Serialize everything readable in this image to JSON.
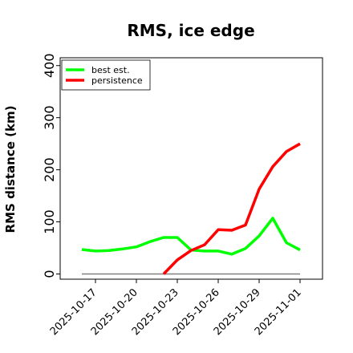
{
  "chart_data": {
    "type": "line",
    "title": "RMS, ice edge",
    "ylabel": "RMS distance (km)",
    "xlabel": "",
    "x": [
      "2025-10-16",
      "2025-10-17",
      "2025-10-18",
      "2025-10-19",
      "2025-10-20",
      "2025-10-21",
      "2025-10-22",
      "2025-10-23",
      "2025-10-24",
      "2025-10-25",
      "2025-10-26",
      "2025-10-27",
      "2025-10-28",
      "2025-10-29",
      "2025-10-30",
      "2025-10-31",
      "2025-11-01"
    ],
    "xticks": [
      "2025-10-17",
      "2025-10-20",
      "2025-10-23",
      "2025-10-26",
      "2025-10-29",
      "2025-11-01"
    ],
    "ylim": [
      -10,
      415
    ],
    "yticks": [
      0,
      100,
      200,
      300,
      400
    ],
    "grid": false,
    "legend_position": "top-left",
    "baseline": {
      "value": 0,
      "color": "#808080"
    },
    "series": [
      {
        "name": "best est.",
        "color": "#00ff00",
        "values": [
          47,
          44,
          45,
          48,
          52,
          62,
          70,
          70,
          46,
          44,
          44,
          38,
          49,
          73,
          107,
          60,
          46
        ]
      },
      {
        "name": "persistence",
        "color": "#ff0000",
        "values": [
          null,
          null,
          null,
          null,
          null,
          null,
          0,
          27,
          45,
          56,
          85,
          84,
          94,
          163,
          206,
          235,
          250
        ]
      }
    ]
  }
}
